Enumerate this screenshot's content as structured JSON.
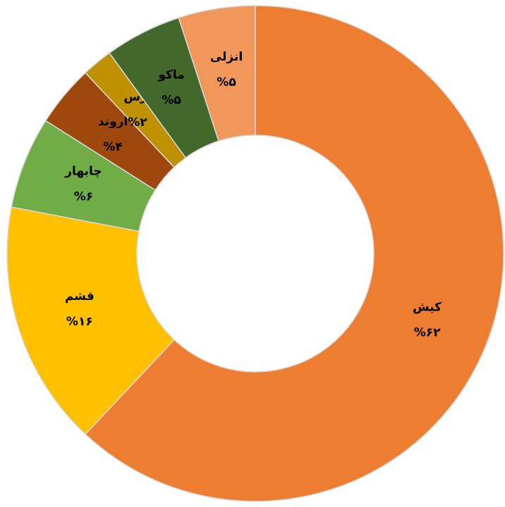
{
  "chart_data": {
    "type": "donut",
    "categories": [
      "کیش",
      "قشم",
      "چابهار",
      "اروند",
      "ارس",
      "ماکو",
      "انزلی"
    ],
    "values": [
      62,
      16,
      6,
      4,
      2,
      5,
      5
    ],
    "value_labels": [
      "%۶۲",
      "%۱۶",
      "%۶",
      "%۴",
      "%۲",
      "%۵",
      "%۵"
    ],
    "colors": [
      "#ED7D31",
      "#FFC000",
      "#70AD47",
      "#9E480E",
      "#BF9000",
      "#43682B",
      "#F1975A"
    ]
  }
}
